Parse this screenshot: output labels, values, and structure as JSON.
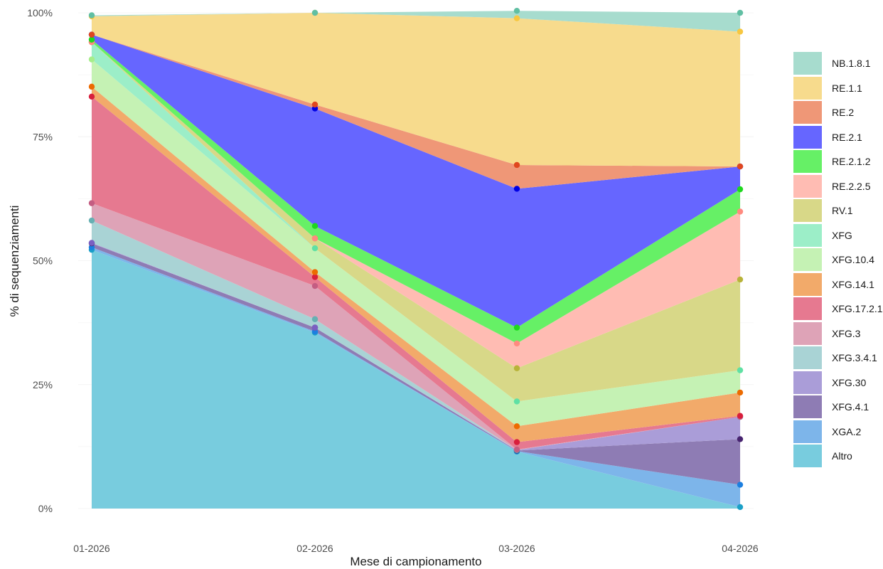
{
  "chart_data": {
    "type": "area",
    "stacked": true,
    "normalized": true,
    "categories": [
      "01-2026",
      "02-2026",
      "03-2026",
      "04-2026"
    ],
    "xlabel": "Mese di campionamento",
    "ylabel": "% di sequenziamenti",
    "ylim": [
      0,
      1
    ],
    "yticks": [
      0,
      0.25,
      0.5,
      0.75,
      1
    ],
    "ytick_labels": [
      "0%",
      "25%",
      "50%",
      "75%",
      "100%"
    ],
    "grid": true,
    "legend_position": "right",
    "series": [
      {
        "name": "Altro",
        "values": [
          0.522,
          0.355,
          0.115,
          0.003
        ],
        "fill": "#78CCDE",
        "point": "#1AA0C8"
      },
      {
        "name": "XGA.2",
        "values": [
          0.005,
          0.002,
          0.001,
          0.045
        ],
        "fill": "#7DB5EA",
        "point": "#1C7FE0"
      },
      {
        "name": "XFG.4.1",
        "values": [
          0.008,
          0.008,
          0.001,
          0.092
        ],
        "fill": "#8E7CB4",
        "point": "#47236F"
      },
      {
        "name": "XFG.30",
        "values": [
          0.001,
          0.0,
          0.001,
          0.045
        ],
        "fill": "#AA9DD8",
        "point": "#7B5FC2"
      },
      {
        "name": "XFG.3.4.1",
        "values": [
          0.045,
          0.017,
          0.0,
          0.0
        ],
        "fill": "#A9D3D5",
        "point": "#66B0B3"
      },
      {
        "name": "XFG.3",
        "values": [
          0.035,
          0.067,
          0.001,
          0.0
        ],
        "fill": "#DEA3B7",
        "point": "#C45D82"
      },
      {
        "name": "XFG.17.2.1",
        "values": [
          0.215,
          0.018,
          0.015,
          0.002
        ],
        "fill": "#E67990",
        "point": "#D81E3C"
      },
      {
        "name": "XFG.14.1",
        "values": [
          0.02,
          0.01,
          0.032,
          0.047
        ],
        "fill": "#F2AA6A",
        "point": "#EC6B00"
      },
      {
        "name": "XFG.10.4",
        "values": [
          0.055,
          0.048,
          0.05,
          0.045
        ],
        "fill": "#C5F2B4",
        "point": "#A6EE8A"
      },
      {
        "name": "XFG",
        "values": [
          0.035,
          0.0,
          0.0,
          0.0
        ],
        "fill": "#9CEEC8",
        "point": "#5FE0A5"
      },
      {
        "name": "RV.1",
        "values": [
          0.0,
          0.02,
          0.067,
          0.183
        ],
        "fill": "#D8D888",
        "point": "#B8B33A"
      },
      {
        "name": "RE.2.2.5",
        "values": [
          0.0,
          0.0,
          0.05,
          0.137
        ],
        "fill": "#FFBCB3",
        "point": "#FF8A7F"
      },
      {
        "name": "RE.2.1.2",
        "values": [
          0.005,
          0.025,
          0.032,
          0.045
        ],
        "fill": "#66F066",
        "point": "#1ED81E"
      },
      {
        "name": "RE.2.1",
        "values": [
          0.01,
          0.237,
          0.28,
          0.046
        ],
        "fill": "#6666FF",
        "point": "#0000E5"
      },
      {
        "name": "RE.2",
        "values": [
          0.0,
          0.008,
          0.048,
          0.0
        ],
        "fill": "#EF9777",
        "point": "#E0471F"
      },
      {
        "name": "RE.1.1",
        "values": [
          0.037,
          0.185,
          0.296,
          0.272
        ],
        "fill": "#F7DB8D",
        "point": "#F7C740"
      },
      {
        "name": "NB.1.8.1",
        "values": [
          0.002,
          0.0,
          0.015,
          0.038
        ],
        "fill": "#A7DCCE",
        "point": "#60BFA3"
      }
    ]
  }
}
